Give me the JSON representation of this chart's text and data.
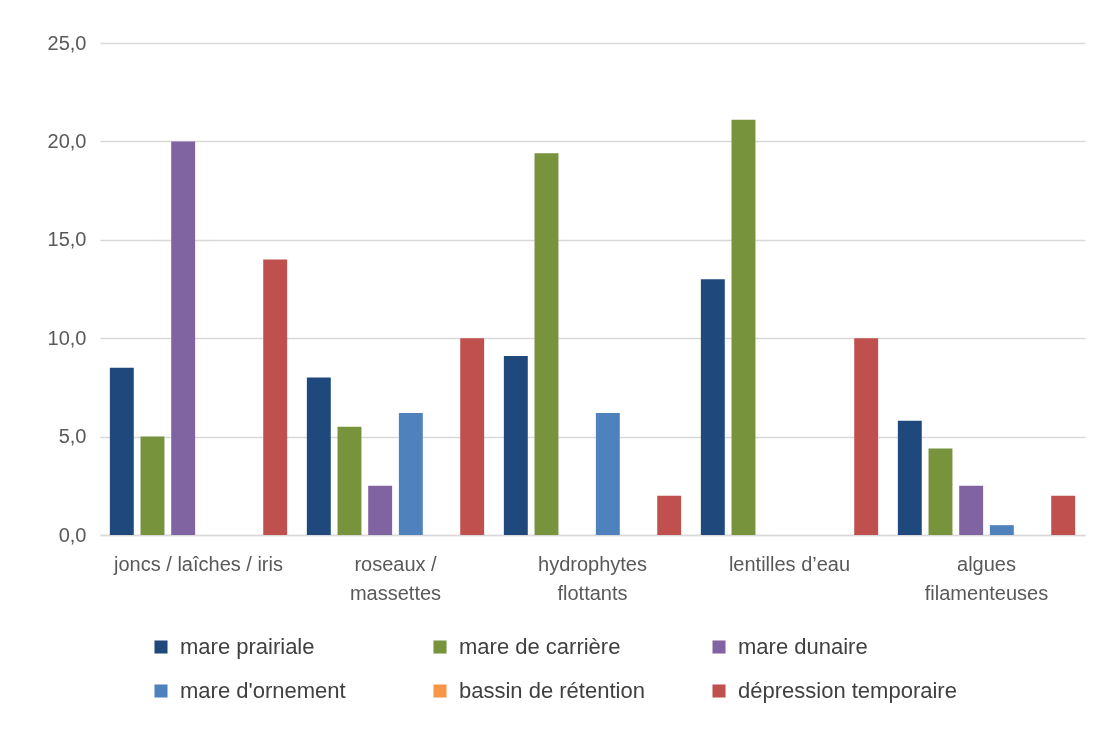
{
  "chart_data": {
    "type": "bar",
    "categories": [
      "joncs / laîches / iris",
      "roseaux / massettes",
      "hydrophytes flottants",
      "lentilles d’eau",
      "algues filamenteuses"
    ],
    "series": [
      {
        "name": "mare prairiale",
        "color": "#1f497d",
        "values": [
          8.5,
          8.0,
          9.1,
          13.0,
          5.8
        ]
      },
      {
        "name": "mare de carrière",
        "color": "#77933c",
        "values": [
          5.0,
          5.5,
          19.4,
          21.1,
          4.4
        ]
      },
      {
        "name": "mare dunaire",
        "color": "#8064a2",
        "values": [
          20.0,
          2.5,
          null,
          null,
          2.5
        ]
      },
      {
        "name": "mare d'ornement",
        "color": "#4f81bd",
        "values": [
          null,
          6.2,
          6.2,
          null,
          0.5
        ]
      },
      {
        "name": "bassin de rétention",
        "color": "#f79646",
        "values": [
          null,
          null,
          null,
          null,
          null
        ]
      },
      {
        "name": "dépression temporaire",
        "color": "#c0504d",
        "values": [
          14.0,
          10.0,
          2.0,
          10.0,
          2.0
        ]
      }
    ],
    "ylim": [
      0,
      25
    ],
    "yticks": [
      {
        "value": 0,
        "label": "0,0"
      },
      {
        "value": 5,
        "label": "5,0"
      },
      {
        "value": 10,
        "label": "10,0"
      },
      {
        "value": 15,
        "label": "15,0"
      },
      {
        "value": 20,
        "label": "20,0"
      },
      {
        "value": 25,
        "label": "25,0"
      }
    ],
    "grid": "y",
    "legend": "bottom"
  }
}
